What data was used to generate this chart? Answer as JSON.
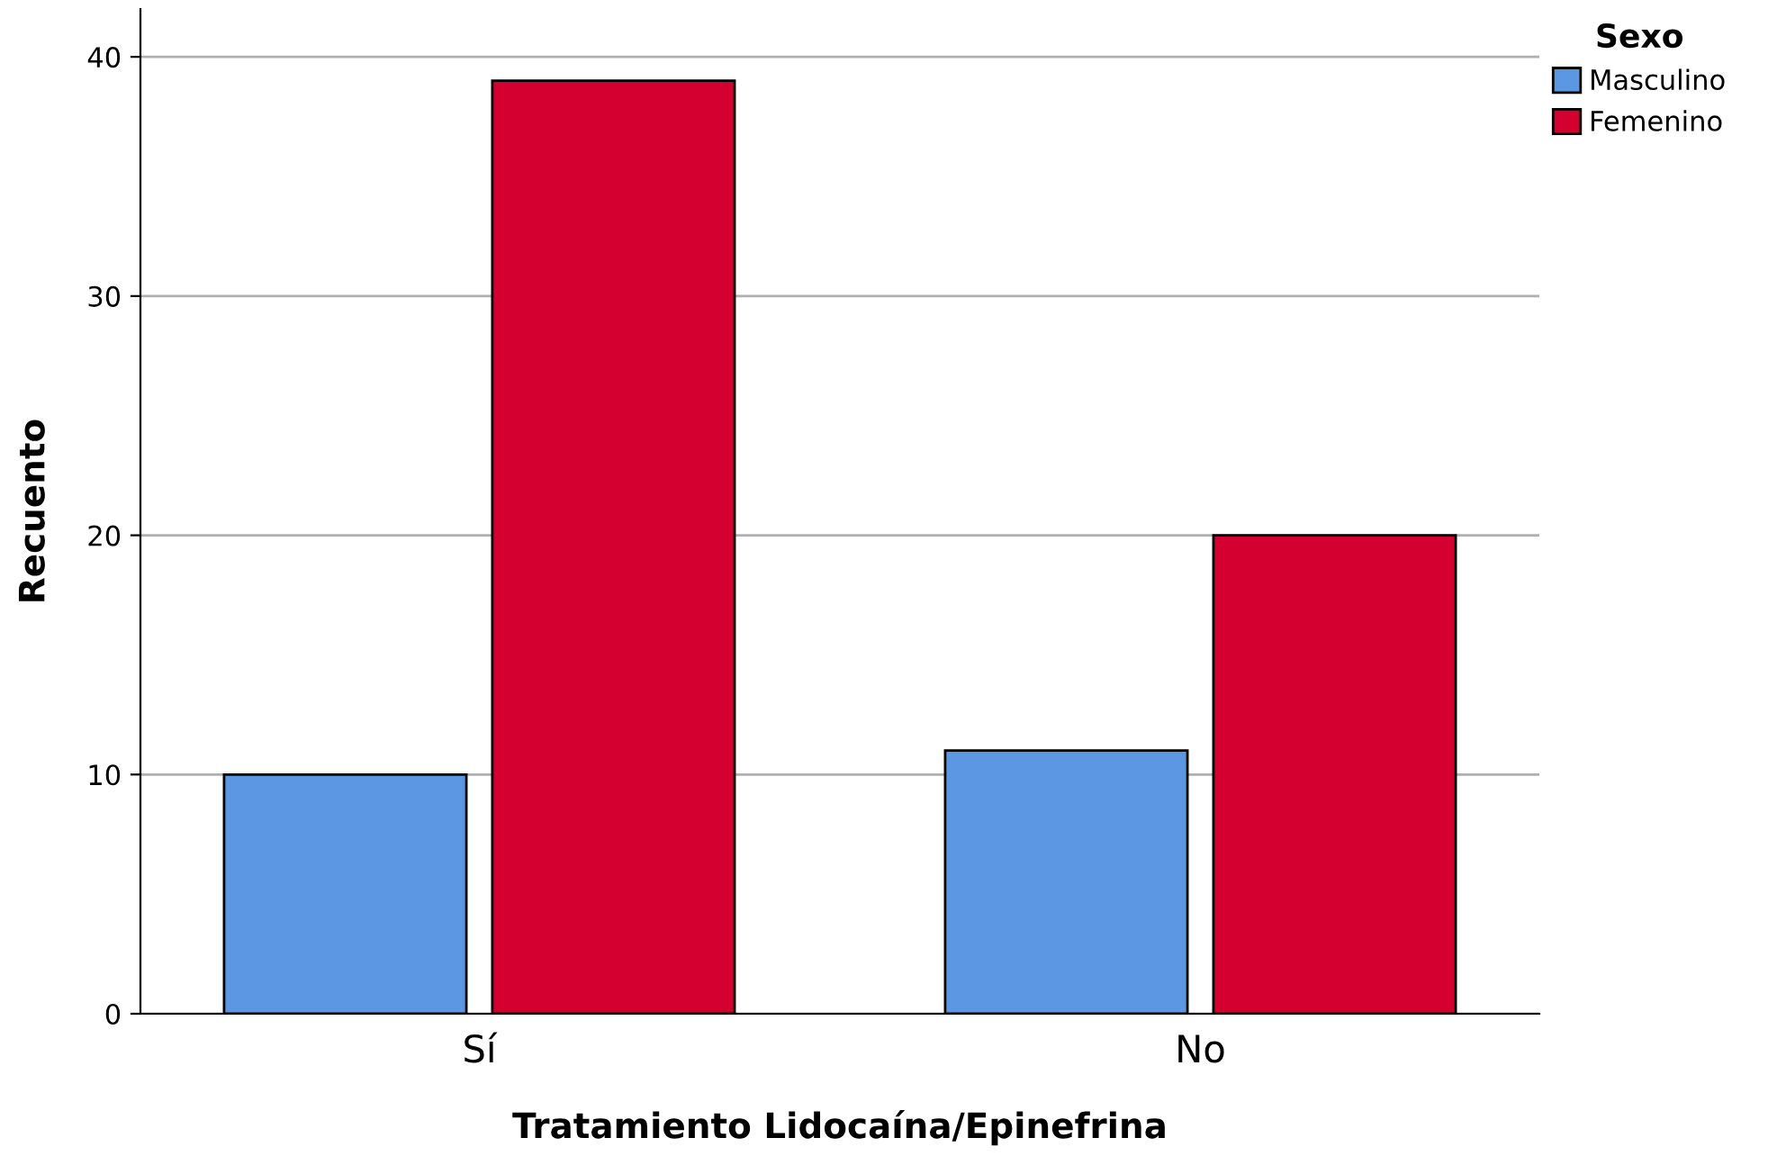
{
  "chart_data": {
    "type": "bar",
    "xlabel": "Tratamiento Lidocaína/Epinefrina",
    "ylabel": "Recuento",
    "legend_title": "Sexo",
    "categories": [
      "Sí",
      "No"
    ],
    "series": [
      {
        "name": "Masculino",
        "color": "#5b97e3",
        "values": [
          10,
          11
        ]
      },
      {
        "name": "Femenino",
        "color": "#d30030",
        "values": [
          39,
          20
        ]
      }
    ],
    "ylim": [
      0,
      42
    ],
    "yticks": [
      0,
      10,
      20,
      30,
      40
    ],
    "grid": "y",
    "legend": "top right"
  }
}
